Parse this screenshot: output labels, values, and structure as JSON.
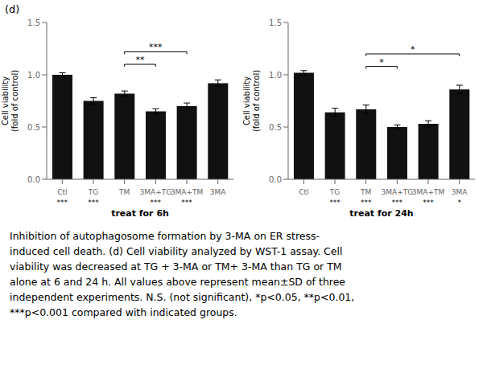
{
  "chart_data": [
    {
      "type": "bar",
      "categories": [
        "Ctl",
        "TG",
        "TM",
        "3MA+TG",
        "3MA+TM",
        "3MA"
      ],
      "values": [
        1.0,
        0.75,
        0.82,
        0.65,
        0.7,
        0.92
      ],
      "errors": [
        0.02,
        0.03,
        0.025,
        0.025,
        0.03,
        0.03
      ],
      "xlabel": "treat for 6h",
      "ylabel": "Cell viability\n(fold of control)",
      "ylim": [
        0.0,
        1.5
      ],
      "yticks": [
        {
          "value": 0.0,
          "label": "0.0"
        },
        0.5,
        {
          "value": 1.0,
          "label": "1.0"
        },
        1.5
      ],
      "color": "#111111",
      "significance": [
        "***",
        "***",
        null,
        "***",
        "***",
        null
      ],
      "brackets": [
        {
          "from": "TM",
          "to": "3MA+TG",
          "y": 1.1,
          "label": "**"
        },
        {
          "from": "TM",
          "to": "3MA+TM",
          "y": 1.22,
          "label": "***"
        }
      ]
    },
    {
      "type": "bar",
      "categories": [
        "Ctl",
        "TG",
        "TM",
        "3MA+TG",
        "3MA+TM",
        "3MA"
      ],
      "values": [
        1.02,
        0.64,
        0.67,
        0.5,
        0.53,
        0.86
      ],
      "errors": [
        0.02,
        0.04,
        0.04,
        0.02,
        0.03,
        0.04
      ],
      "xlabel": "treat for 24h",
      "ylabel": "Cell viability\n(fold of control)",
      "ylim": [
        0.0,
        1.5
      ],
      "yticks": [
        {
          "value": 0.0,
          "label": "0.0"
        },
        0.5,
        {
          "value": 1.0,
          "label": "1.0"
        },
        1.5
      ],
      "color": "#111111",
      "significance": [
        null,
        "***",
        "***",
        "***",
        "***",
        "*"
      ],
      "brackets": [
        {
          "from": "TM",
          "to": "3MA+TG",
          "y": 1.08,
          "label": "*"
        },
        {
          "from": "TM",
          "to": "3MA",
          "y": 1.2,
          "label": "*"
        }
      ]
    }
  ],
  "panel_label": "(d)",
  "caption": [
    "Inhibition of autophagosome formation by 3-MA on ER stress-",
    "induced cell death. (d) Cell viability analyzed by WST-1 assay. Cell",
    "viability was decreased at TG + 3-MA or TM+ 3-MA than TG or TM",
    "alone at 6 and 24 h. All values above represent mean±SD of three",
    "independent experiments. N.S. (not significant), *p<0.05, **p<0.01,",
    "***p<0.001 compared with indicated groups."
  ]
}
